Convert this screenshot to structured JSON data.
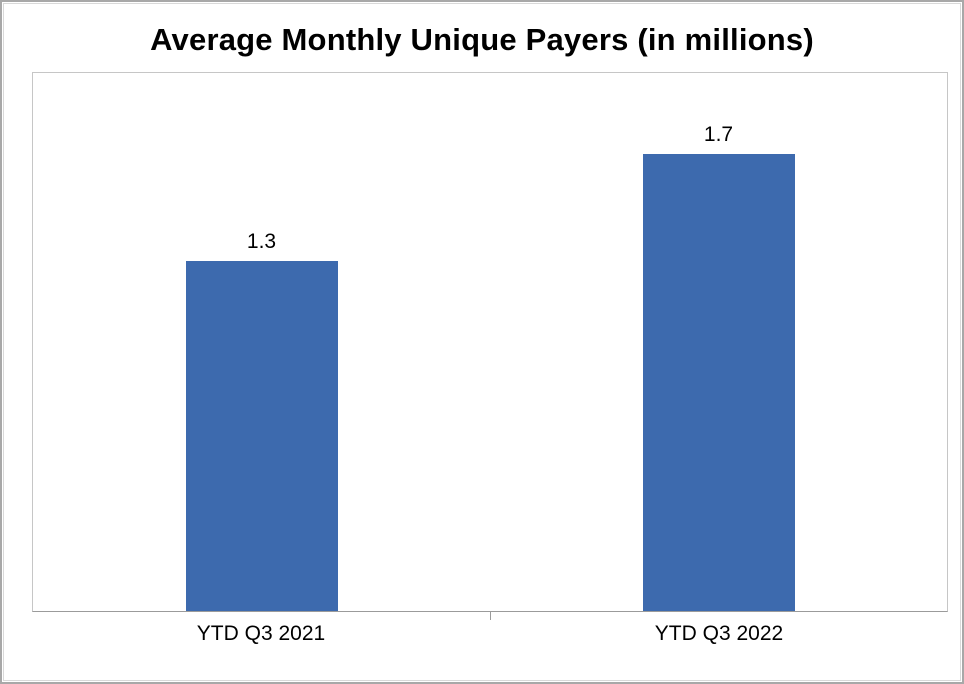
{
  "chart_data": {
    "type": "bar",
    "title": "Average Monthly Unique Payers (in millions)",
    "categories": [
      "YTD Q3 2021",
      "YTD Q3 2022"
    ],
    "values": [
      1.3,
      1.7
    ],
    "value_labels": [
      "1.3",
      "1.7"
    ],
    "ylim": [
      0,
      2.0
    ],
    "xlabel": "",
    "ylabel": "",
    "grid": false,
    "legend": false,
    "bar_color": "#3d6aae"
  },
  "colors": {
    "bar": "#3d6aae",
    "axis_line": "#9b9b9b",
    "plot_border": "#c6c6c6",
    "outer_frame": "#a8a8a8",
    "title_text": "#000000"
  }
}
